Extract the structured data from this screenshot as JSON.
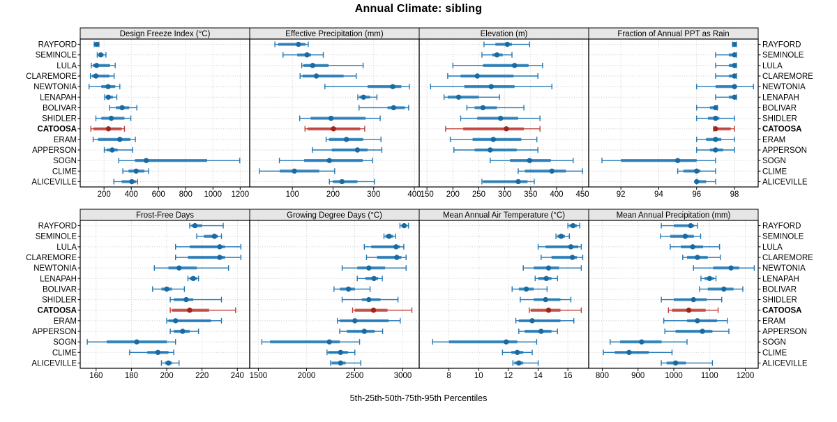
{
  "title": "Annual Climate: sibling",
  "footer": "5th-25th-50th-75th-95th Percentiles",
  "colors": {
    "series_blue": "#1f77b4",
    "series_blue_dot": "#1a6aa2",
    "highlight_red": "#bb3c35",
    "highlight_red_dot": "#a02418",
    "grid": "#c9c9c9",
    "panel_border": "#000000",
    "header_fill": "#e6e6e6",
    "text": "#000000"
  },
  "chart_data": {
    "type": "percentile-dot-whisker",
    "percentile_labels": [
      "5th",
      "25th",
      "50th",
      "75th",
      "95th"
    ],
    "highlight_site": "CATOOSA",
    "sites": [
      "RAYFORD",
      "SEMINOLE",
      "LULA",
      "CLAREMORE",
      "NEWTONIA",
      "LENAPAH",
      "BOLIVAR",
      "SHIDLER",
      "CATOOSA",
      "ERAM",
      "APPERSON",
      "SOGN",
      "CLIME",
      "ALICEVILLE"
    ],
    "panels": [
      {
        "title": "Design Freeze Index (°C)",
        "ticks": [
          200,
          400,
          600,
          800,
          1000,
          1200
        ],
        "domain": [
          25,
          1270
        ],
        "values": [
          [
            128,
            138,
            146,
            156,
            163
          ],
          [
            150,
            158,
            176,
            196,
            214
          ],
          [
            106,
            118,
            145,
            244,
            282
          ],
          [
            100,
            112,
            140,
            240,
            274
          ],
          [
            90,
            180,
            230,
            282,
            316
          ],
          [
            205,
            215,
            231,
            265,
            294
          ],
          [
            240,
            287,
            333,
            385,
            441
          ],
          [
            140,
            180,
            253,
            350,
            397
          ],
          [
            103,
            122,
            232,
            330,
            350
          ],
          [
            120,
            155,
            316,
            393,
            430
          ],
          [
            202,
            219,
            260,
            300,
            410
          ],
          [
            308,
            427,
            510,
            957,
            1197
          ],
          [
            338,
            380,
            436,
            496,
            527
          ],
          [
            272,
            330,
            404,
            436,
            446
          ]
        ]
      },
      {
        "title": "Effective Precipitation (mm)",
        "ticks": [
          100,
          200,
          300,
          400
        ],
        "domain": [
          -5,
          412
        ],
        "values": [
          [
            57,
            65,
            115,
            132,
            139
          ],
          [
            77,
            112,
            136,
            146,
            176
          ],
          [
            123,
            127,
            150,
            189,
            274
          ],
          [
            119,
            125,
            159,
            226,
            257
          ],
          [
            180,
            285,
            347,
            368,
            388
          ],
          [
            261,
            265,
            275,
            291,
            308
          ],
          [
            264,
            334,
            349,
            377,
            386
          ],
          [
            118,
            145,
            195,
            280,
            316
          ],
          [
            131,
            137,
            201,
            267,
            278
          ],
          [
            183,
            190,
            233,
            274,
            318
          ],
          [
            149,
            197,
            260,
            285,
            320
          ],
          [
            68,
            129,
            191,
            273,
            297
          ],
          [
            19,
            69,
            105,
            166,
            204
          ],
          [
            191,
            200,
            222,
            260,
            302
          ]
        ]
      },
      {
        "title": "Elevation (m)",
        "ticks": [
          150,
          200,
          250,
          300,
          350,
          400,
          450
        ],
        "domain": [
          135,
          462
        ],
        "values": [
          [
            260,
            282,
            305,
            314,
            348
          ],
          [
            256,
            276,
            285,
            296,
            314
          ],
          [
            200,
            258,
            319,
            346,
            373
          ],
          [
            190,
            215,
            247,
            317,
            364
          ],
          [
            157,
            222,
            274,
            319,
            391
          ],
          [
            183,
            190,
            211,
            250,
            290
          ],
          [
            227,
            242,
            258,
            285,
            337
          ],
          [
            215,
            247,
            292,
            326,
            368
          ],
          [
            186,
            220,
            303,
            337,
            368
          ],
          [
            195,
            238,
            278,
            332,
            362
          ],
          [
            202,
            242,
            272,
            323,
            364
          ],
          [
            272,
            310,
            348,
            389,
            432
          ],
          [
            326,
            339,
            391,
            418,
            450
          ],
          [
            256,
            258,
            326,
            344,
            357
          ]
        ]
      },
      {
        "title": "Fraction of Annual PPT as Rain",
        "ticks": [
          92,
          94,
          96,
          98
        ],
        "domain": [
          90.3,
          99.25
        ],
        "values": [
          [
            97.9,
            98,
            98,
            98,
            98.1
          ],
          [
            97,
            97.7,
            98,
            98,
            98.1
          ],
          [
            97,
            97.7,
            98,
            98,
            98.1
          ],
          [
            97,
            97.7,
            98,
            98,
            98.1
          ],
          [
            96,
            97,
            98,
            98,
            99
          ],
          [
            97,
            97.7,
            98,
            98,
            98.1
          ],
          [
            96,
            96.7,
            97,
            97,
            97.1
          ],
          [
            96,
            96.6,
            97,
            97.2,
            98
          ],
          [
            96.9,
            97,
            97,
            97.8,
            98
          ],
          [
            96,
            96.5,
            97,
            97.3,
            98
          ],
          [
            96,
            96.7,
            97,
            97.4,
            98
          ],
          [
            91,
            92,
            95,
            96,
            97
          ],
          [
            95,
            95.3,
            96,
            96.2,
            97
          ],
          [
            96,
            96,
            96,
            96.5,
            97
          ]
        ]
      },
      {
        "title": "Frost-Free Days",
        "ticks": [
          160,
          180,
          200,
          220,
          240
        ],
        "domain": [
          151,
          247
        ],
        "values": [
          [
            213,
            214,
            216,
            220,
            232
          ],
          [
            217,
            221,
            227,
            229,
            231
          ],
          [
            205,
            213,
            230,
            233,
            242
          ],
          [
            205,
            212,
            230,
            233,
            242
          ],
          [
            193,
            201,
            207,
            217,
            235
          ],
          [
            212,
            213,
            215,
            217,
            218
          ],
          [
            192,
            197,
            200,
            203,
            210
          ],
          [
            202,
            204,
            211,
            215,
            231
          ],
          [
            202,
            203,
            213,
            224,
            239
          ],
          [
            200,
            201,
            205,
            225,
            231
          ],
          [
            202,
            204,
            209,
            213,
            218
          ],
          [
            155,
            166,
            183,
            200,
            205
          ],
          [
            179,
            189,
            195,
            201,
            204
          ],
          [
            197,
            199,
            201,
            203,
            207
          ]
        ]
      },
      {
        "title": "Growing Degree Days (°C)",
        "ticks": [
          1500,
          2000,
          2500,
          3000
        ],
        "domain": [
          1410,
          3170
        ],
        "values": [
          [
            2970,
            2985,
            3014,
            3040,
            3058
          ],
          [
            2804,
            2818,
            2857,
            2900,
            2925
          ],
          [
            2600,
            2672,
            2930,
            2972,
            3010
          ],
          [
            2623,
            2732,
            2937,
            2985,
            3034
          ],
          [
            2370,
            2527,
            2647,
            2816,
            3034
          ],
          [
            2527,
            2611,
            2700,
            2744,
            2787
          ],
          [
            2285,
            2345,
            2435,
            2503,
            2660
          ],
          [
            2370,
            2575,
            2647,
            2768,
            2950
          ],
          [
            2478,
            2502,
            2696,
            2841,
            3094
          ],
          [
            2321,
            2345,
            2502,
            2853,
            2973
          ],
          [
            2345,
            2418,
            2600,
            2708,
            2790
          ],
          [
            1536,
            1621,
            2237,
            2345,
            2551
          ],
          [
            2213,
            2225,
            2353,
            2430,
            2502
          ],
          [
            2250,
            2261,
            2353,
            2406,
            2563
          ]
        ]
      },
      {
        "title": "Mean Annual Air Temperature (°C)",
        "ticks": [
          8,
          10,
          12,
          14,
          16
        ],
        "domain": [
          6.0,
          17.4
        ],
        "values": [
          [
            16,
            16.1,
            16.35,
            16.6,
            16.8
          ],
          [
            15.2,
            15.3,
            15.55,
            15.8,
            16.1
          ],
          [
            14,
            14.5,
            16.2,
            16.7,
            16.9
          ],
          [
            14.2,
            14.9,
            16.3,
            16.6,
            17
          ],
          [
            13,
            13.7,
            14.7,
            15.4,
            16.9
          ],
          [
            13.8,
            14,
            14.55,
            14.9,
            15.3
          ],
          [
            12.25,
            12.7,
            13.2,
            13.7,
            14.6
          ],
          [
            12.8,
            13.7,
            14.5,
            15.5,
            16.2
          ],
          [
            13.4,
            13.5,
            14.7,
            15.5,
            16.9
          ],
          [
            12.5,
            12.7,
            13.6,
            15.5,
            16.4
          ],
          [
            12.7,
            13.1,
            14.2,
            14.9,
            15.3
          ],
          [
            6.9,
            8,
            11.85,
            12.6,
            13.9
          ],
          [
            11.6,
            12.2,
            12.6,
            13,
            13.6
          ],
          [
            12.3,
            12.4,
            12.7,
            13,
            14
          ]
        ]
      },
      {
        "title": "Mean Annual Precipitation (mm)",
        "ticks": [
          800,
          900,
          1000,
          1100,
          1200
        ],
        "domain": [
          762,
          1236
        ],
        "values": [
          [
            965,
            1000,
            1047,
            1057,
            1066
          ],
          [
            963,
            990,
            1032,
            1056,
            1075
          ],
          [
            990,
            1020,
            1053,
            1082,
            1128
          ],
          [
            1025,
            1037,
            1066,
            1095,
            1130
          ],
          [
            1055,
            1110,
            1160,
            1183,
            1225
          ],
          [
            1076,
            1086,
            1100,
            1112,
            1118
          ],
          [
            1072,
            1095,
            1140,
            1167,
            1193
          ],
          [
            965,
            1000,
            1055,
            1092,
            1134
          ],
          [
            985,
            995,
            1042,
            1089,
            1124
          ],
          [
            972,
            1037,
            1066,
            1121,
            1150
          ],
          [
            975,
            1005,
            1080,
            1108,
            1154
          ],
          [
            822,
            850,
            910,
            966,
            1037
          ],
          [
            803,
            835,
            875,
            930,
            995
          ],
          [
            965,
            980,
            1005,
            1034,
            1108
          ]
        ]
      }
    ]
  }
}
